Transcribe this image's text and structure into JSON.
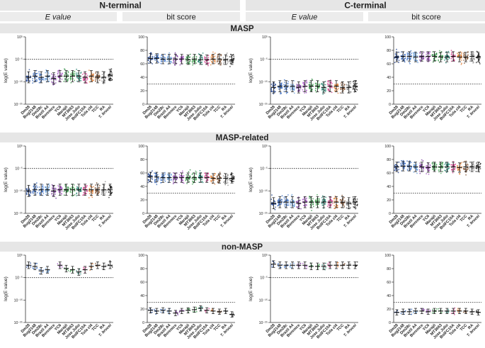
{
  "figure": {
    "groups": [
      "N-terminal",
      "C-terminal"
    ],
    "column_headers": [
      "E value",
      "bit score",
      "E value",
      "bit score"
    ],
    "rows": [
      "MASP",
      "MASP-related",
      "non-MASP"
    ]
  },
  "chart_data": {
    "type": "scatter",
    "categories": [
      "Dm28",
      "Bug2148",
      "Dm28c",
      "Brazil A4",
      "Berenice",
      "YC6",
      "Marajó",
      "MT3663",
      "Jose Julio",
      "BolFC10A",
      "Tula cl4",
      "TCC",
      "RA",
      "T. brucei"
    ],
    "category_colors": [
      "#1c3f8e",
      "#2a5db7",
      "#3d73c8",
      "#5a96d8",
      "#7a3b9e",
      "#a14fc0",
      "#2a8a3e",
      "#3fa04f",
      "#1b7d6b",
      "#d13a8a",
      "#e07a2e",
      "#7a4a2a",
      "#8a8a8a",
      "#222222"
    ],
    "y_axes": {
      "evalue_n": {
        "label": "log(E value)",
        "ticks": [
          "10⁵",
          "10⁻⁵",
          "10⁻¹⁵",
          "10⁻²⁵"
        ],
        "range": [
          -25,
          5
        ],
        "threshold": -5
      },
      "evalue_c": {
        "label": "log(E value)",
        "ticks": [
          "10⁵",
          "10⁻⁵",
          "10⁻¹⁵",
          "10⁻²⁵"
        ],
        "range": [
          -25,
          5
        ],
        "threshold": -5
      },
      "bitscore": {
        "label": "",
        "ticks": [
          "100",
          "80",
          "60",
          "40",
          "20",
          "0"
        ],
        "range": [
          0,
          100
        ],
        "threshold": 30
      }
    },
    "panels": [
      {
        "row": "MASP",
        "column": "N-terminal E value",
        "median": [
          -13,
          -12.5,
          -13,
          -12.5,
          -13.5,
          -12.5,
          -12.5,
          -12.5,
          -12.5,
          -13,
          -12.5,
          -13,
          -13,
          -12
        ]
      },
      {
        "row": "MASP",
        "column": "N-terminal bit score",
        "median": [
          68,
          68,
          67,
          67,
          67,
          67,
          66,
          67,
          66,
          66,
          67,
          67,
          66,
          66
        ]
      },
      {
        "row": "MASP",
        "column": "C-terminal E value",
        "median": [
          -17.5,
          -17,
          -17,
          -17,
          -17.5,
          -17,
          -17,
          -17,
          -17.5,
          -17,
          -17,
          -17.5,
          -17.5,
          -17
        ]
      },
      {
        "row": "MASP",
        "column": "C-terminal bit score",
        "median": [
          70,
          71,
          71,
          70,
          71,
          71,
          71,
          70,
          70,
          71,
          70,
          70,
          71,
          70
        ]
      },
      {
        "row": "MASP-related",
        "column": "N-terminal E value",
        "median": [
          -15,
          -14.5,
          -14.5,
          -14.5,
          -15,
          -14.5,
          -14.5,
          -14.5,
          -14.5,
          -14.5,
          -14.5,
          -14.5,
          -14.5,
          -14.5
        ]
      },
      {
        "row": "MASP-related",
        "column": "N-terminal bit score",
        "median": [
          54,
          54,
          53,
          53,
          53,
          53,
          53,
          53,
          53,
          53,
          52,
          52,
          52,
          52
        ]
      },
      {
        "row": "MASP-related",
        "column": "C-terminal E value",
        "median": [
          -20.5,
          -20,
          -20,
          -20,
          -20.5,
          -20,
          -20,
          -20,
          -20,
          -20,
          -20,
          -20,
          -20.5,
          -20
        ]
      },
      {
        "row": "MASP-related",
        "column": "C-terminal bit score",
        "median": [
          69,
          70,
          70,
          69,
          69,
          68,
          69,
          69,
          69,
          69,
          68,
          69,
          69,
          69
        ]
      },
      {
        "row": "non-MASP",
        "column": "N-terminal E value",
        "median": [
          0.5,
          0,
          -2,
          -1.5,
          null,
          0.5,
          -1,
          -1.5,
          -2.5,
          -1.5,
          0,
          0.5,
          0,
          0.5
        ]
      },
      {
        "row": "non-MASP",
        "column": "N-terminal bit score",
        "median": [
          18,
          17,
          18,
          17,
          14,
          17,
          18,
          19,
          21,
          18,
          17,
          16,
          17,
          12
        ]
      },
      {
        "row": "non-MASP",
        "column": "C-terminal E value",
        "median": [
          1,
          0.5,
          0.5,
          0.5,
          0.5,
          0.5,
          0,
          0,
          0,
          0.5,
          0.5,
          0.5,
          0.5,
          0.5
        ]
      },
      {
        "row": "non-MASP",
        "column": "C-terminal bit score",
        "median": [
          15,
          16,
          16,
          17,
          17,
          16,
          17,
          17,
          17,
          17,
          17,
          17,
          16,
          15
        ]
      }
    ]
  }
}
